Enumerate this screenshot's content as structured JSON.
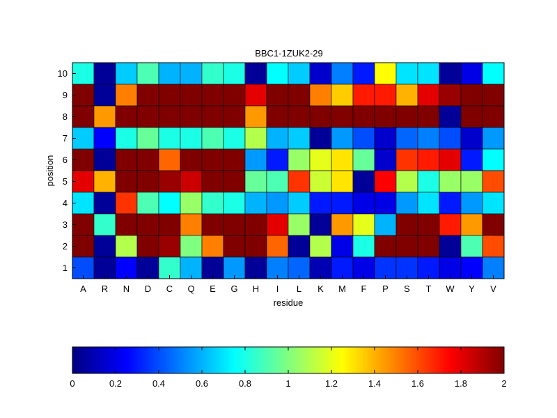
{
  "chart_data": {
    "type": "heatmap",
    "title": "BBC1-1ZUK2-29",
    "xlabel": "residue",
    "ylabel": "position",
    "x_categories": [
      "A",
      "R",
      "N",
      "D",
      "C",
      "Q",
      "E",
      "G",
      "H",
      "I",
      "L",
      "K",
      "M",
      "F",
      "P",
      "S",
      "T",
      "W",
      "Y",
      "V"
    ],
    "y_categories": [
      "10",
      "9",
      "8",
      "7",
      "6",
      "5",
      "4",
      "3",
      "2",
      "1"
    ],
    "values": [
      [
        0.8,
        0.05,
        0.65,
        0.9,
        0.6,
        0.6,
        0.85,
        0.8,
        0.05,
        0.75,
        0.65,
        0.15,
        0.5,
        0.3,
        1.25,
        0.7,
        0.7,
        0.05,
        0.2,
        0.75
      ],
      [
        2.0,
        0.05,
        1.5,
        2.0,
        2.0,
        2.0,
        2.0,
        2.0,
        1.8,
        2.0,
        2.0,
        1.5,
        1.35,
        1.7,
        1.7,
        1.4,
        1.8,
        1.95,
        2.0,
        2.0
      ],
      [
        2.0,
        1.45,
        2.0,
        2.0,
        2.0,
        2.0,
        2.0,
        2.0,
        1.45,
        2.0,
        2.0,
        2.0,
        2.0,
        2.0,
        2.0,
        2.0,
        2.0,
        0.05,
        2.0,
        2.0
      ],
      [
        0.65,
        0.25,
        0.8,
        0.95,
        0.8,
        0.8,
        0.9,
        0.8,
        1.1,
        0.6,
        0.65,
        0.05,
        0.55,
        0.4,
        0.15,
        0.45,
        0.5,
        0.4,
        0.15,
        0.55
      ],
      [
        2.0,
        0.05,
        2.0,
        2.0,
        1.55,
        2.0,
        2.0,
        2.0,
        0.55,
        0.3,
        1.05,
        1.2,
        1.3,
        0.95,
        0.15,
        1.65,
        1.7,
        1.8,
        0.3,
        0.75
      ],
      [
        1.8,
        1.4,
        2.0,
        2.0,
        1.95,
        1.85,
        2.0,
        2.0,
        0.95,
        0.9,
        1.65,
        1.15,
        1.3,
        0.05,
        1.75,
        1.1,
        0.8,
        1.05,
        1.05,
        1.6
      ],
      [
        0.7,
        0.05,
        1.65,
        0.9,
        0.75,
        1.05,
        0.85,
        0.8,
        0.6,
        0.55,
        0.65,
        0.3,
        0.3,
        0.2,
        0.2,
        0.55,
        0.7,
        0.3,
        0.55,
        0.7
      ],
      [
        2.0,
        0.85,
        2.0,
        2.0,
        2.0,
        1.5,
        2.0,
        2.0,
        2.0,
        1.8,
        1.05,
        0.05,
        1.45,
        1.2,
        0.6,
        2.0,
        2.0,
        1.7,
        1.45,
        2.0
      ],
      [
        2.0,
        0.05,
        1.1,
        2.0,
        1.95,
        1.0,
        1.5,
        2.0,
        2.0,
        1.55,
        0.05,
        1.1,
        0.2,
        0.8,
        2.0,
        2.0,
        2.0,
        0.05,
        0.9,
        1.6
      ],
      [
        0.4,
        0.05,
        0.25,
        0.05,
        0.85,
        0.6,
        0.05,
        0.55,
        0.05,
        0.5,
        0.45,
        0.1,
        0.3,
        0.2,
        0.35,
        0.35,
        0.3,
        0.2,
        0.25,
        0.5
      ]
    ],
    "colormap": "jet",
    "color_range": [
      0,
      2
    ],
    "colorbar": {
      "orientation": "horizontal",
      "ticks": [
        "0",
        "0.2",
        "0.4",
        "0.6",
        "0.8",
        "1",
        "1.2",
        "1.4",
        "1.6",
        "1.8",
        "2"
      ]
    },
    "grid": true
  }
}
